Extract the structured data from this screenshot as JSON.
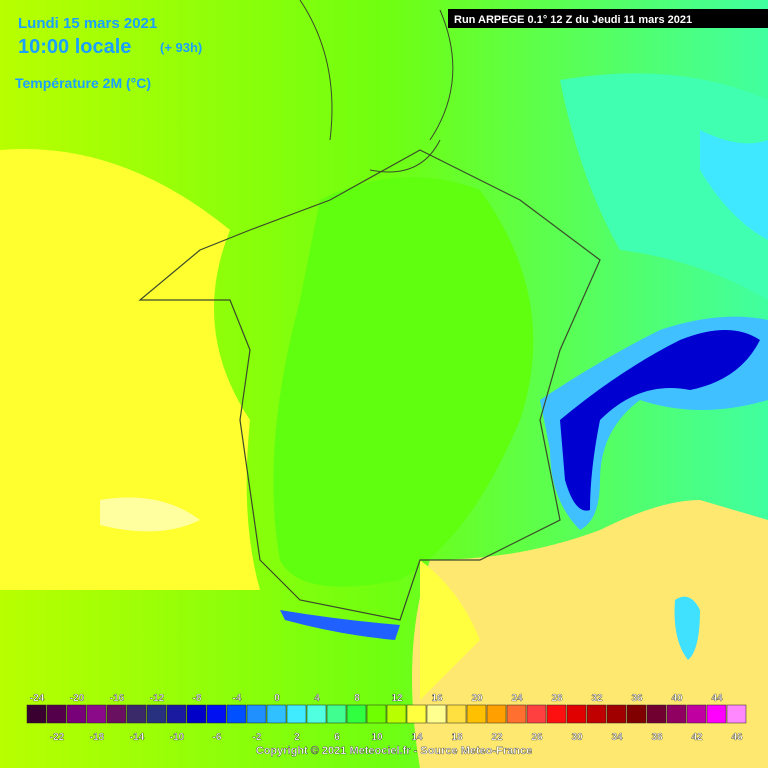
{
  "header": {
    "date": "Lundi 15 mars 2021",
    "time": "10:00 locale",
    "lead": "(+ 93h)",
    "parameter": "Température 2M (°C)",
    "run": "Run ARPEGE 0.1° 12 Z du Jeudi 11 mars 2021"
  },
  "legend": {
    "ticks": [
      -24,
      -22,
      -20,
      -18,
      -16,
      -14,
      -12,
      -10,
      -8,
      -6,
      -4,
      -2,
      0,
      2,
      4,
      6,
      8,
      10,
      12,
      14,
      16,
      18,
      20,
      22,
      24,
      26,
      28,
      30,
      32,
      34,
      36,
      38,
      40,
      42,
      44,
      46
    ],
    "colors": [
      "#3a0030",
      "#55004a",
      "#780078",
      "#8a0a8a",
      "#6a1060",
      "#3a2a6a",
      "#283080",
      "#1a1aa0",
      "#0000c8",
      "#0010f0",
      "#0050ff",
      "#2090ff",
      "#30c0ff",
      "#40eaff",
      "#50ffe0",
      "#40ff90",
      "#30ff40",
      "#70ff00",
      "#b8ff00",
      "#ffff40",
      "#ffff90",
      "#ffe040",
      "#ffc000",
      "#ffa000",
      "#ff7030",
      "#ff4040",
      "#ff1010",
      "#e00000",
      "#c00000",
      "#a00000",
      "#800000",
      "#700030",
      "#900060",
      "#c000a0",
      "#ff00ff",
      "#ff88ff"
    ]
  },
  "footer": {
    "copyright": "Copyright © 2021 Meteociel.fr - Source Meteo-France"
  }
}
